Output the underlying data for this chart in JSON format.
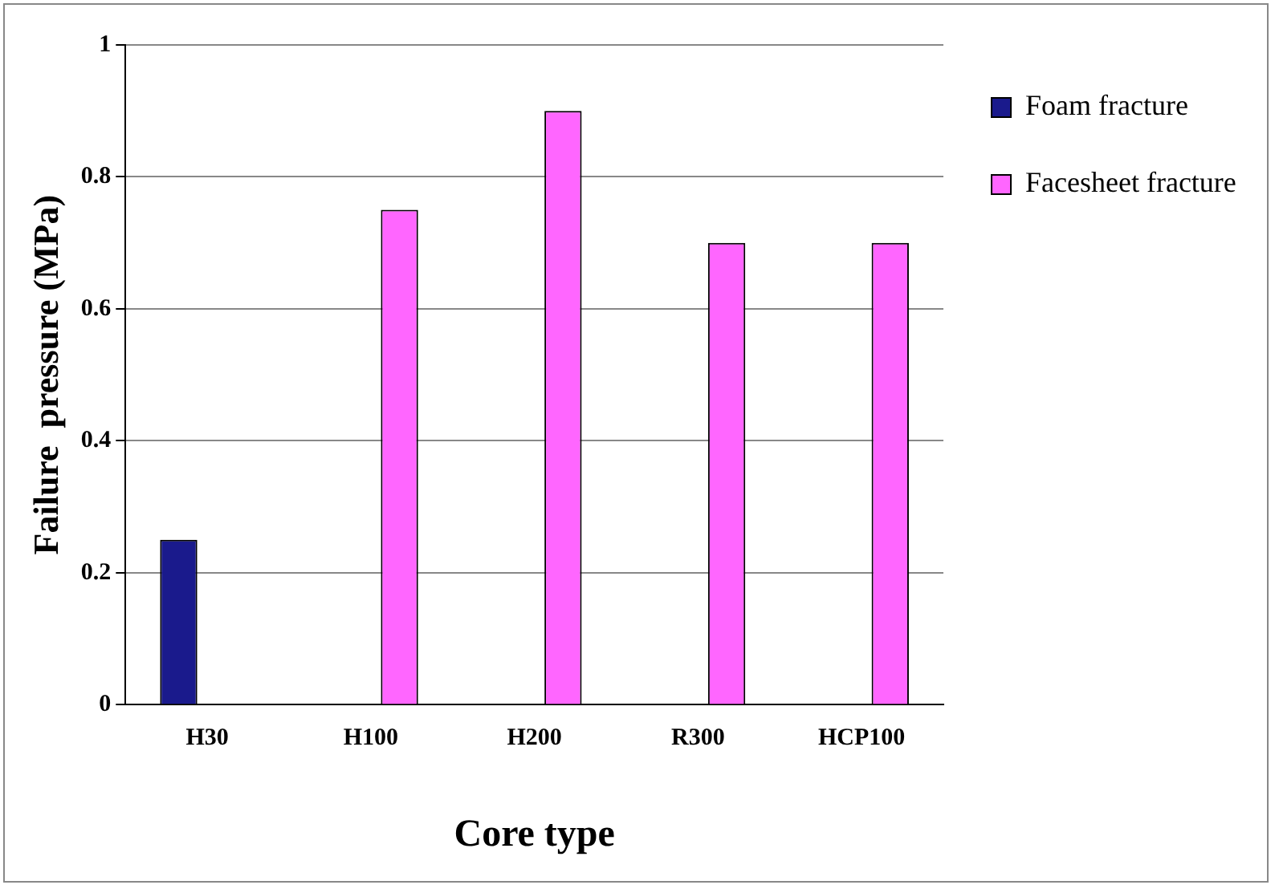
{
  "chart_data": {
    "type": "bar",
    "xlabel": "Core type",
    "ylabel": "Failure  pressure (MPa)",
    "categories": [
      "H30",
      "H100",
      "H200",
      "R300",
      "HCP100"
    ],
    "series": [
      {
        "name": "Foam fracture",
        "color": "#1a1a8c",
        "values": [
          0.25,
          null,
          null,
          null,
          null
        ]
      },
      {
        "name": "Facesheet fracture",
        "color": "#ff66ff",
        "values": [
          null,
          0.75,
          0.9,
          0.7,
          0.7
        ]
      }
    ],
    "ylim": [
      0,
      1
    ],
    "yticks": [
      0,
      0.2,
      0.4,
      0.6,
      0.8,
      1
    ],
    "grid": "y",
    "legend": "right"
  }
}
